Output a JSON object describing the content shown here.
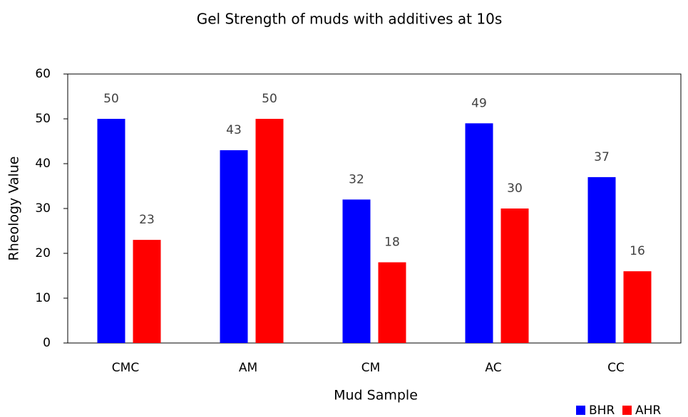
{
  "chart_data": {
    "type": "bar",
    "title": "Gel Strength of muds with additives at 10s",
    "x_label": "Mud Sample",
    "y_label": "Rheology Value",
    "categories": [
      "CMC",
      "AM",
      "CM",
      "AC",
      "CC"
    ],
    "series": [
      {
        "name": "BHR",
        "color": "#0000ff",
        "values": [
          50,
          43,
          32,
          49,
          37
        ]
      },
      {
        "name": "AHR",
        "color": "#ff0000",
        "values": [
          23,
          50,
          18,
          30,
          16
        ]
      }
    ],
    "ylim": [
      0,
      60
    ],
    "yticks": [
      0,
      10,
      20,
      30,
      40,
      50,
      60
    ],
    "legend": "bottom-right"
  }
}
